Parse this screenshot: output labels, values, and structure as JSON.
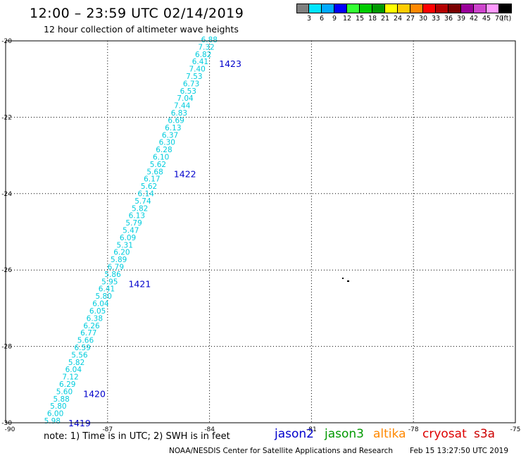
{
  "header": {
    "title": "12:00 – 23:59 UTC 02/14/2019",
    "subtitle": "12 hour collection of altimeter wave heights"
  },
  "legend": {
    "colors": [
      "#7f7f7f",
      "#00e5ff",
      "#00aaff",
      "#0000ff",
      "#33ff33",
      "#00cc00",
      "#009900",
      "#ffff00",
      "#ffcc00",
      "#ff8800",
      "#ff0000",
      "#b30000",
      "#7a0000",
      "#990099",
      "#cc44cc",
      "#ff99ff",
      "#000000"
    ],
    "labels": [
      "3",
      "6",
      "9",
      "12",
      "15",
      "18",
      "21",
      "24",
      "27",
      "30",
      "33",
      "36",
      "39",
      "42",
      "45",
      "70",
      "(ft)"
    ]
  },
  "axes": {
    "lon_ticks": [
      "-90",
      "-87",
      "-84",
      "-81",
      "-78",
      "-75"
    ],
    "lat_ticks": [
      "-20",
      "-22",
      "-24",
      "-26",
      "-28",
      "-30"
    ]
  },
  "track": {
    "color": "#00ccdd",
    "values": [
      "6.88",
      "7.32",
      "6.82",
      "6.41",
      "7.40",
      "7.53",
      "6.73",
      "6.53",
      "7.04",
      "7.44",
      "6.83",
      "6.69",
      "6.13",
      "6.37",
      "6.30",
      "6.28",
      "6.10",
      "5.62",
      "5.68",
      "6.17",
      "5.62",
      "6.14",
      "5.74",
      "5.82",
      "6.13",
      "5.79",
      "5.47",
      "6.09",
      "5.31",
      "6.20",
      "5.89",
      "6.79",
      "5.86",
      "5.95",
      "6.41",
      "5.80",
      "6.04",
      "6.05",
      "6.38",
      "6.26",
      "6.77",
      "5.66",
      "6.59",
      "5.56",
      "5.82",
      "6.04",
      "7.12",
      "6.29",
      "5.60",
      "5.88",
      "5.80",
      "6.00",
      "5.98"
    ],
    "times": [
      {
        "label": "1423",
        "value_index": 3
      },
      {
        "label": "1422",
        "value_index": 18
      },
      {
        "label": "1421",
        "value_index": 33
      },
      {
        "label": "1420",
        "value_index": 48
      },
      {
        "label": "1419",
        "value_index": 52
      }
    ]
  },
  "footer": {
    "note": "note: 1) Time is in UTC; 2) SWH is in feet",
    "credit": "NOAA/NESDIS Center for Satellite Applications and Research",
    "timestamp": "Feb 15 13:27:50 UTC 2019",
    "satellites": [
      {
        "name": "jason2",
        "color": "#0000cc"
      },
      {
        "name": "jason3",
        "color": "#009900"
      },
      {
        "name": "altika",
        "color": "#ff8800"
      },
      {
        "name": "cryosat",
        "color": "#dd0000"
      },
      {
        "name": "s3a",
        "color": "#cc0000"
      }
    ]
  }
}
